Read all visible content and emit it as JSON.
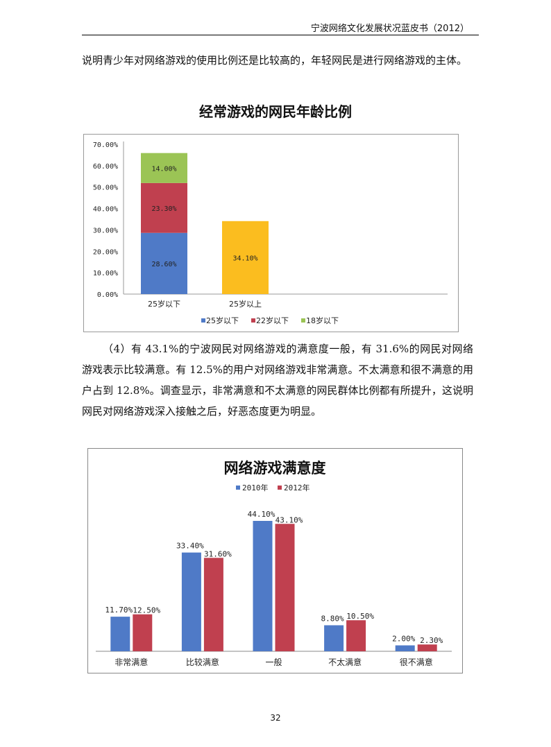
{
  "header": {
    "title": "宁波网络文化发展状况蓝皮书（2012）"
  },
  "paragraphs": [
    "说明青少年对网络游戏的使用比例还是比较高的，年轻网民是进行网络游戏的主体。",
    "（4）有 43.1%的宁波网民对网络游戏的满意度一般，有 31.6%的网民对网络游戏表示比较满意。有 12.5%的用户对网络游戏非常满意。不太满意和很不满意的用户占到 12.8%。调查显示，非常满意和不太满意的网民群体比例都有所提升，这说明网民对网络游戏深入接触之后，好恶态度更为明显。"
  ],
  "page_number": "32",
  "chart_data": [
    {
      "type": "bar",
      "stacked": true,
      "title": "经常游戏的网民年龄比例",
      "categories": [
        "25岁以下",
        "25岁以上"
      ],
      "ylim": [
        0,
        70
      ],
      "yticks": [
        "0.00%",
        "10.00%",
        "20.00%",
        "30.00%",
        "40.00%",
        "50.00%",
        "60.00%",
        "70.00%"
      ],
      "legend_position": "bottom",
      "grid": false,
      "series": [
        {
          "name": "25岁以下",
          "color": "#4f7ac7",
          "values": [
            28.6,
            null
          ],
          "labels": [
            "28.60%",
            ""
          ]
        },
        {
          "name": "22岁以下",
          "color": "#c0404f",
          "values": [
            23.3,
            null
          ],
          "labels": [
            "23.30%",
            ""
          ]
        },
        {
          "name": "18岁以下",
          "color": "#9bc455",
          "values": [
            14.0,
            null
          ],
          "labels": [
            "14.00%",
            ""
          ]
        },
        {
          "name": "",
          "color": "#fbbd1f",
          "values": [
            null,
            34.1
          ],
          "labels": [
            "",
            "34.10%"
          ]
        }
      ]
    },
    {
      "type": "bar",
      "title": "网络游戏满意度",
      "categories": [
        "非常满意",
        "比较满意",
        "一般",
        "不太满意",
        "很不满意"
      ],
      "ylim": [
        0,
        50
      ],
      "legend_position": "top",
      "grid": false,
      "series": [
        {
          "name": "2010年",
          "color": "#4f7ac7",
          "values": [
            11.7,
            33.4,
            44.1,
            8.8,
            2.0
          ],
          "labels": [
            "11.70%",
            "33.40%",
            "44.10%",
            "8.80%",
            "2.00%"
          ]
        },
        {
          "name": "2012年",
          "color": "#c0404f",
          "values": [
            12.5,
            31.6,
            43.1,
            10.5,
            2.3
          ],
          "labels": [
            "12.50%",
            "31.60%",
            "43.10%",
            "10.50%",
            "2.30%"
          ]
        }
      ]
    }
  ]
}
